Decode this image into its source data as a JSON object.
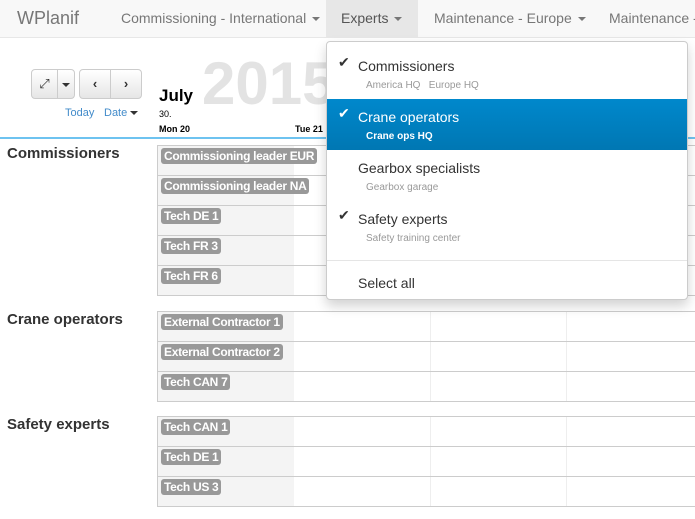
{
  "nav": {
    "brand": "WPlanif",
    "items": [
      {
        "label": "Commissioning - International"
      },
      {
        "label": "Experts"
      },
      {
        "label": "Maintenance - Europe"
      },
      {
        "label": "Maintenance -"
      }
    ]
  },
  "toolbar": {
    "expand_icon": "expand-arrows-icon",
    "prev_icon": "chevron-left-icon",
    "next_icon": "chevron-right-icon",
    "today": "Today",
    "date": "Date"
  },
  "calendar": {
    "month": "July",
    "year": "2015",
    "week": "30.",
    "days": [
      "Mon 20",
      "Tue 21"
    ]
  },
  "groups": [
    {
      "name": "Commissioners",
      "resources": [
        "Commissioning leader EUR",
        "Commissioning leader NA",
        "Tech DE 1",
        "Tech FR 3",
        "Tech FR 6"
      ]
    },
    {
      "name": "Crane operators",
      "resources": [
        "External Contractor 1",
        "External Contractor 2",
        "Tech CAN 7"
      ]
    },
    {
      "name": "Safety experts",
      "resources": [
        "Tech CAN 1",
        "Tech DE 1",
        "Tech US 3"
      ]
    }
  ],
  "dropdown": {
    "items": [
      {
        "label": "Commissioners",
        "checked": true,
        "sub": "America HQ   Europe HQ"
      },
      {
        "label": "Crane operators",
        "checked": true,
        "sub": "Crane ops HQ",
        "highlighted": true
      },
      {
        "label": "Gearbox specialists",
        "checked": false,
        "sub": "Gearbox garage"
      },
      {
        "label": "Safety experts",
        "checked": true,
        "sub": "Safety training center"
      }
    ],
    "select_all": "Select all"
  },
  "colors": {
    "accent": "#0088cc",
    "badge": "#999999",
    "timeline_bar": "#6ec3f0"
  }
}
